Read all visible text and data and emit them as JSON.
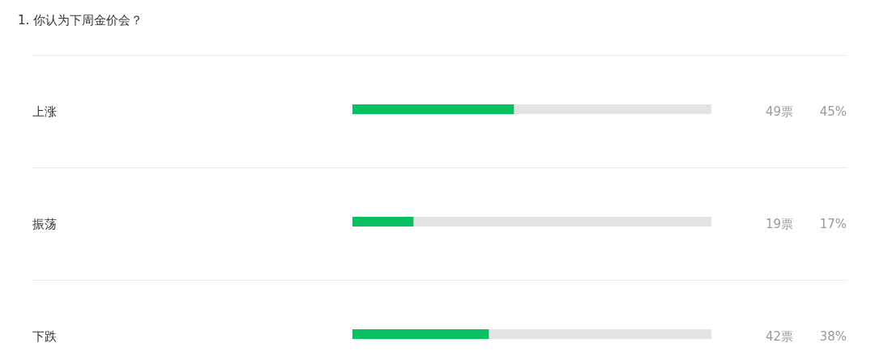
{
  "chart_data": {
    "type": "bar",
    "orientation": "horizontal",
    "title": "1. 你认为下周金价会？",
    "categories": [
      "上涨",
      "振荡",
      "下跌"
    ],
    "values": [
      45,
      17,
      38
    ],
    "color": "#07c160",
    "xlim": [
      0,
      100
    ],
    "tick_labels": "y",
    "value_labels": [
      "45%",
      "17%",
      "38%"
    ],
    "annotations": [
      "49票",
      "19票",
      "42票"
    ]
  }
}
